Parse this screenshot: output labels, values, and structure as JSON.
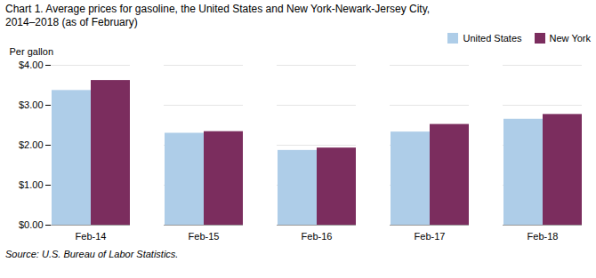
{
  "chart_data": {
    "type": "bar",
    "title": "Chart 1. Average prices for gasoline, the United States and New York-Newark-Jersey City,",
    "subtitle": "2014–2018 (as of February)",
    "ylabel": "Per gallon",
    "source": "Source: U.S. Bureau of Labor Statistics.",
    "categories": [
      "Feb-14",
      "Feb-15",
      "Feb-16",
      "Feb-17",
      "Feb-18"
    ],
    "series": [
      {
        "name": "United States",
        "color": "#aecde8",
        "values": [
          3.37,
          2.3,
          1.87,
          2.33,
          2.65
        ]
      },
      {
        "name": "New York",
        "color": "#7b2d5e",
        "values": [
          3.62,
          2.34,
          1.93,
          2.52,
          2.77
        ]
      }
    ],
    "ylim": [
      0,
      4.0
    ],
    "yticks": [
      {
        "value": 0.0,
        "label": "$0.00"
      },
      {
        "value": 1.0,
        "label": "$1.00"
      },
      {
        "value": 2.0,
        "label": "$2.00"
      },
      {
        "value": 3.0,
        "label": "$3.00"
      },
      {
        "value": 4.0,
        "label": "$4.00"
      }
    ],
    "grid": true,
    "legend": "upper right"
  }
}
